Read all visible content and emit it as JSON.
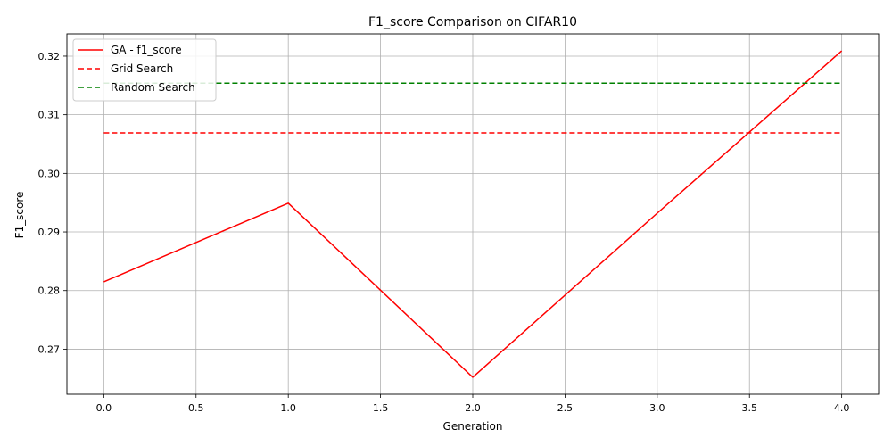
{
  "chart_data": {
    "type": "line",
    "title": "F1_score Comparison on CIFAR10",
    "xlabel": "Generation",
    "ylabel": "F1_score",
    "xlim": [
      -0.2,
      4.2
    ],
    "ylim": [
      0.2623,
      0.3238
    ],
    "x_ticks": [
      0.0,
      0.5,
      1.0,
      1.5,
      2.0,
      2.5,
      3.0,
      3.5,
      4.0
    ],
    "x_tick_labels": [
      "0.0",
      "0.5",
      "1.0",
      "1.5",
      "2.0",
      "2.5",
      "3.0",
      "3.5",
      "4.0"
    ],
    "y_ticks": [
      0.27,
      0.28,
      0.29,
      0.3,
      0.31,
      0.32
    ],
    "y_tick_labels": [
      "0.27",
      "0.28",
      "0.29",
      "0.30",
      "0.31",
      "0.32"
    ],
    "grid": true,
    "legend_position": "top-left",
    "series": [
      {
        "name": "GA - f1_score",
        "color": "#ff0000",
        "style": "solid",
        "x": [
          0,
          1,
          2,
          3,
          4
        ],
        "y": [
          0.2815,
          0.2949,
          0.2652,
          0.2932,
          0.3209
        ]
      },
      {
        "name": "Grid Search",
        "color": "#ff0000",
        "style": "dashed",
        "x": [
          0,
          4
        ],
        "y": [
          0.3069,
          0.3069
        ]
      },
      {
        "name": "Random Search",
        "color": "#008000",
        "style": "dashed",
        "x": [
          0,
          4
        ],
        "y": [
          0.3154,
          0.3154
        ]
      }
    ]
  }
}
